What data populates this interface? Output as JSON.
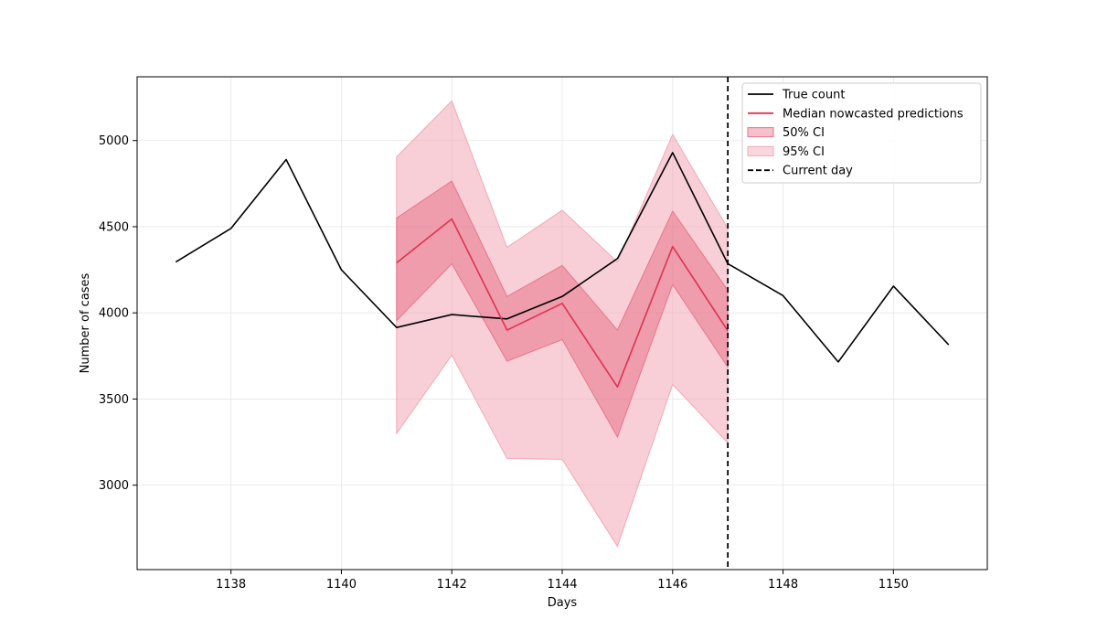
{
  "chart_data": {
    "type": "line",
    "title": "",
    "xlabel": "Days",
    "ylabel": "Number of cases",
    "xlim": [
      1136.3,
      1151.7
    ],
    "ylim": [
      2510,
      5370
    ],
    "x_ticks": [
      1138,
      1140,
      1142,
      1144,
      1146,
      1148,
      1150
    ],
    "y_ticks": [
      3000,
      3500,
      4000,
      4500,
      5000
    ],
    "grid": true,
    "legend_position": "top-right",
    "colors": {
      "true_count": "#000000",
      "median": "#e0314f",
      "ci50": "#e8748b",
      "ci95": "#f2a7b6",
      "current_day": "#000000"
    },
    "legend": [
      {
        "key": "true_count",
        "label": "True count",
        "style": "line"
      },
      {
        "key": "median",
        "label": "Median nowcasted predictions",
        "style": "line"
      },
      {
        "key": "ci50",
        "label": "50% CI",
        "style": "patch"
      },
      {
        "key": "ci95",
        "label": "95% CI",
        "style": "patch"
      },
      {
        "key": "current_day",
        "label": "Current day",
        "style": "dashed"
      }
    ],
    "series": [
      {
        "key": "true_count",
        "name": "True count",
        "x": [
          1137,
          1138,
          1139,
          1140,
          1141,
          1142,
          1143,
          1144,
          1145,
          1146,
          1147,
          1148,
          1149,
          1150,
          1151
        ],
        "values": [
          4295,
          4490,
          4890,
          4250,
          3915,
          3990,
          3965,
          4095,
          4315,
          4930,
          4285,
          4100,
          3715,
          4155,
          3815
        ]
      },
      {
        "key": "median",
        "name": "Median nowcasted predictions",
        "x": [
          1141,
          1142,
          1143,
          1144,
          1145,
          1146,
          1147
        ],
        "values": [
          4290,
          4545,
          3900,
          4055,
          3570,
          4385,
          3895
        ]
      }
    ],
    "bands": [
      {
        "key": "ci95",
        "name": "95% CI",
        "x": [
          1141,
          1142,
          1143,
          1144,
          1145,
          1146,
          1147
        ],
        "lower": [
          3300,
          3755,
          3155,
          3150,
          2645,
          3585,
          3245
        ],
        "upper": [
          4905,
          5230,
          4380,
          4595,
          4295,
          5035,
          4490
        ]
      },
      {
        "key": "ci50",
        "name": "50% CI",
        "x": [
          1141,
          1142,
          1143,
          1144,
          1145,
          1146,
          1147
        ],
        "lower": [
          3955,
          4285,
          3720,
          3845,
          3280,
          4165,
          3685
        ],
        "upper": [
          4550,
          4765,
          4095,
          4275,
          3900,
          4590,
          4130
        ]
      }
    ],
    "current_day": 1147
  }
}
